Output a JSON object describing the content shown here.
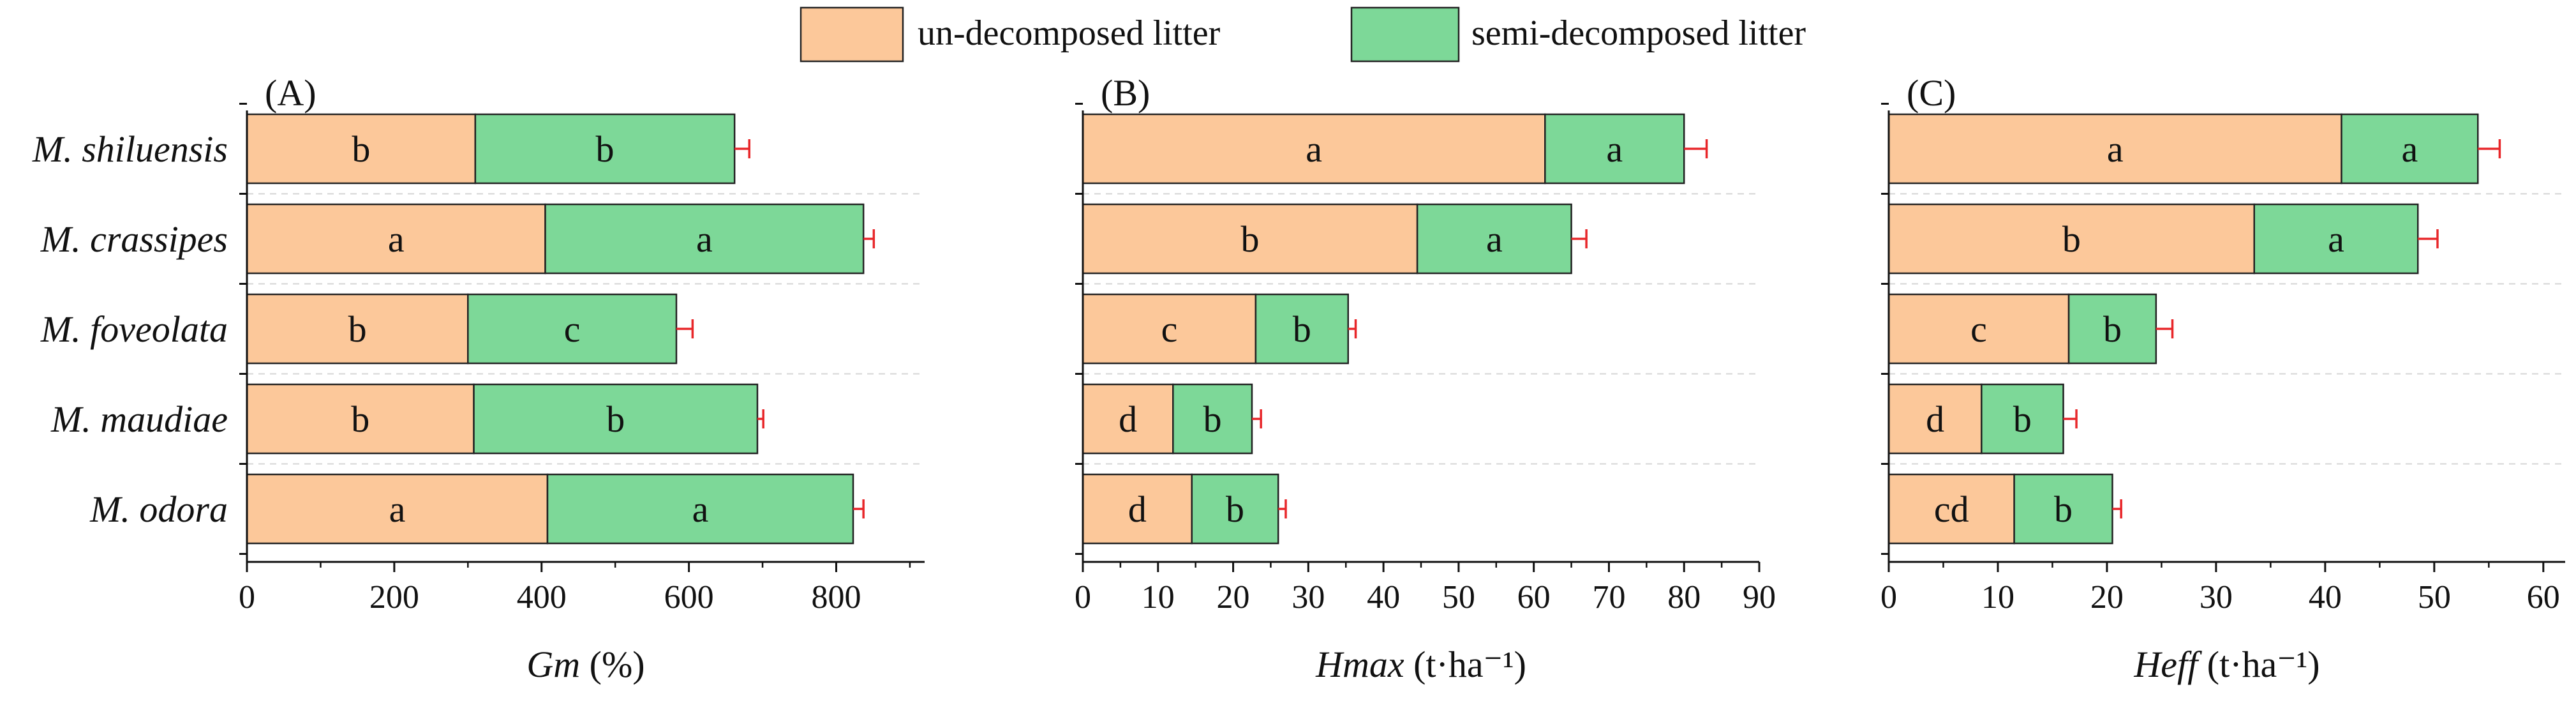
{
  "legend": {
    "placement": "top-center",
    "items": [
      {
        "label": "un-decomposed litter",
        "color": "#FCC89A"
      },
      {
        "label": "semi-decomposed litter",
        "color": "#7DD898"
      }
    ]
  },
  "chart_data": [
    {
      "type": "bar",
      "orientation": "horizontal",
      "stacked": true,
      "panel_label": "(A)",
      "categories": [
        "M. shiluensis",
        "M. crassipes",
        "M. foveolata",
        "M. maudiae",
        "M. odora"
      ],
      "xlabel_var": "Gm",
      "xlabel_unit": " (%)",
      "xlim": [
        0,
        920
      ],
      "xticks": [
        0,
        200,
        400,
        600,
        800
      ],
      "series": [
        {
          "name": "un-decomposed litter",
          "color": "#FCC89A",
          "values": [
            310,
            405,
            300,
            308,
            408
          ],
          "errors": [
            14,
            16,
            26,
            26,
            20
          ],
          "letters": [
            "b",
            "a",
            "b",
            "b",
            "a"
          ]
        },
        {
          "name": "semi-decomposed litter",
          "color": "#7DD898",
          "values": [
            352,
            432,
            283,
            385,
            415
          ],
          "errors": [
            20,
            14,
            22,
            8,
            14
          ],
          "letters": [
            "b",
            "a",
            "c",
            "b",
            "a"
          ]
        }
      ]
    },
    {
      "type": "bar",
      "orientation": "horizontal",
      "stacked": true,
      "panel_label": "(B)",
      "categories": [
        "M. shiluensis",
        "M. crassipes",
        "M. foveolata",
        "M. maudiae",
        "M. odora"
      ],
      "xlabel_var": "Hmax",
      "xlabel_unit": " (t·ha⁻¹)",
      "xlim": [
        0,
        90
      ],
      "xticks": [
        0,
        10,
        20,
        30,
        40,
        50,
        60,
        70,
        80,
        90
      ],
      "series": [
        {
          "name": "un-decomposed litter",
          "color": "#FCC89A",
          "values": [
            61.5,
            44.5,
            23,
            12,
            14.5
          ],
          "errors": [
            5.5,
            5,
            5,
            1.8,
            1.5
          ],
          "letters": [
            "a",
            "b",
            "c",
            "d",
            "d"
          ]
        },
        {
          "name": "semi-decomposed litter",
          "color": "#7DD898",
          "values": [
            18.5,
            20.5,
            12.3,
            10.5,
            11.5
          ],
          "errors": [
            3,
            2,
            1,
            1.2,
            1
          ],
          "letters": [
            "a",
            "a",
            "b",
            "b",
            "b"
          ]
        }
      ]
    },
    {
      "type": "bar",
      "orientation": "horizontal",
      "stacked": true,
      "panel_label": "(C)",
      "categories": [
        "M. shiluensis",
        "M. crassipes",
        "M. foveolata",
        "M. maudiae",
        "M. odora"
      ],
      "xlabel_var": "Heff",
      "xlabel_unit": " (t·ha⁻¹)",
      "xlim": [
        0,
        62
      ],
      "xticks": [
        0,
        10,
        20,
        30,
        40,
        50,
        60
      ],
      "series": [
        {
          "name": "un-decomposed litter",
          "color": "#FCC89A",
          "values": [
            41.5,
            33.5,
            16.5,
            8.5,
            11.5
          ],
          "errors": [
            3.5,
            4,
            4,
            1.2,
            1.5
          ],
          "letters": [
            "a",
            "b",
            "c",
            "d",
            "cd"
          ]
        },
        {
          "name": "semi-decomposed litter",
          "color": "#7DD898",
          "values": [
            12.5,
            15,
            8,
            7.5,
            9
          ],
          "errors": [
            2,
            1.8,
            1.5,
            1.2,
            0.8
          ],
          "letters": [
            "a",
            "a",
            "b",
            "b",
            "b"
          ]
        }
      ]
    }
  ]
}
